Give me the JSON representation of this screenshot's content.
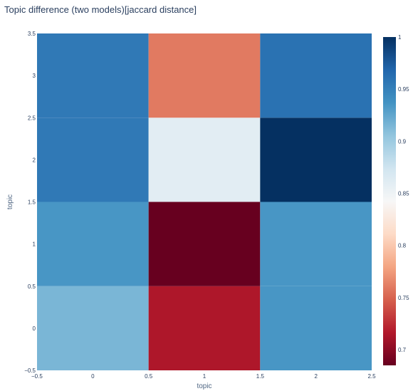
{
  "chart_data": {
    "type": "heatmap",
    "title": "Topic difference (two models)[jaccard distance]",
    "xlabel": "topic",
    "ylabel": "topic",
    "x": [
      0,
      1,
      2
    ],
    "y": [
      0,
      1,
      2,
      3
    ],
    "z": [
      [
        0.915,
        0.715,
        0.935
      ],
      [
        0.935,
        0.685,
        0.935
      ],
      [
        0.955,
        0.86,
        1.0
      ],
      [
        0.955,
        0.76,
        0.96
      ]
    ],
    "xlim": [
      -0.5,
      2.5
    ],
    "ylim": [
      -0.5,
      3.5
    ],
    "x_tick_labels": [
      "−0.5",
      "0",
      "0.5",
      "1",
      "1.5",
      "2",
      "2.5"
    ],
    "x_tick_values": [
      -0.5,
      0,
      0.5,
      1,
      1.5,
      2,
      2.5
    ],
    "y_tick_labels": [
      "−0.5",
      "0",
      "0.5",
      "1",
      "1.5",
      "2",
      "2.5",
      "3",
      "3.5"
    ],
    "y_tick_values": [
      -0.5,
      0,
      0.5,
      1,
      1.5,
      2,
      2.5,
      3,
      3.5
    ],
    "colorscale": "RdBu",
    "zmin": 0.685,
    "zmax": 1.0,
    "colorbar_ticks": [
      0.7,
      0.75,
      0.8,
      0.85,
      0.9,
      0.95,
      1
    ],
    "colorbar_tick_labels": [
      "0.7",
      "0.75",
      "0.8",
      "0.85",
      "0.9",
      "0.95",
      "1"
    ],
    "colors": {
      "low": "#67001f",
      "mid": "#f7f7f7",
      "high": "#053061",
      "text": "#2a3f5f"
    }
  }
}
